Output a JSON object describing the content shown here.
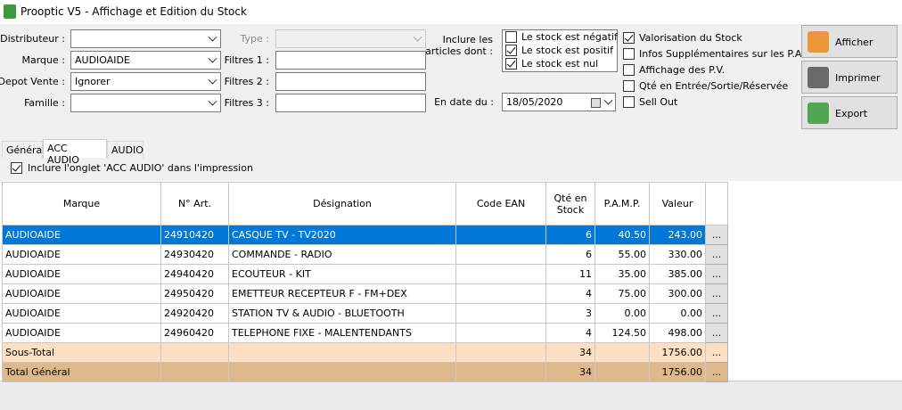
{
  "window": {
    "title": "Prooptic V5 - Affichage et Edition du Stock"
  },
  "filters": [
    {
      "label": "Distributeur :"
    },
    {
      "label": "Marque :",
      "value": "AUDIOAIDE"
    },
    {
      "label": "Depot Vente :",
      "value": "Ignorer"
    },
    {
      "label": "Famille :"
    }
  ],
  "type_filter": {
    "label": "Type :"
  },
  "text_filters": [
    "Filtres 1 :",
    "Filtres 2 :",
    "Filtres 3 :"
  ],
  "include": {
    "lines": [
      "Inclure les",
      "articles dont :"
    ],
    "options": [
      {
        "label": "Le stock est négatif",
        "checked": false
      },
      {
        "label": "Le stock est positif",
        "checked": true
      },
      {
        "label": "Le stock est nul",
        "checked": true
      }
    ]
  },
  "date": {
    "label": "En date du :",
    "value": "18/05/2020"
  },
  "options": [
    {
      "label": "Valorisation du Stock",
      "checked": true
    },
    {
      "label": "Infos Supplémentaires sur les P.A.",
      "checked": false
    },
    {
      "label": "Affichage des P.V.",
      "checked": false
    },
    {
      "label": "Qté en Entrée/Sortie/Réservée",
      "checked": false
    },
    {
      "label": "Sell Out",
      "checked": false
    }
  ],
  "buttons": [
    "Afficher",
    "Imprimer",
    "Export"
  ],
  "tabs": {
    "items": [
      "Général",
      "ACC AUDIO",
      "AUDIO"
    ],
    "active": 1
  },
  "print_option": {
    "label": "Inclure l'onglet 'ACC AUDIO' dans l'impression",
    "checked": true
  },
  "table": {
    "columns": [
      "Marque",
      "N° Art.",
      "Désignation",
      "Code EAN",
      "Qté en Stock",
      "P.A.M.P.",
      "Valeur"
    ],
    "row_button": "...",
    "selected": 0,
    "rows": [
      {
        "marque": "AUDIOAIDE",
        "art": "24910420",
        "designation": "CASQUE TV - TV2020",
        "qty": 6,
        "pamp": "40.50",
        "valeur": "243.00"
      },
      {
        "marque": "AUDIOAIDE",
        "art": "24930420",
        "designation": "COMMANDE - RADIO",
        "qty": 6,
        "pamp": "55.00",
        "valeur": "330.00"
      },
      {
        "marque": "AUDIOAIDE",
        "art": "24940420",
        "designation": "ECOUTEUR - KIT",
        "qty": 11,
        "pamp": "35.00",
        "valeur": "385.00"
      },
      {
        "marque": "AUDIOAIDE",
        "art": "24950420",
        "designation": "EMETTEUR RECEPTEUR F - FM+DEX",
        "qty": 4,
        "pamp": "75.00",
        "valeur": "300.00"
      },
      {
        "marque": "AUDIOAIDE",
        "art": "24920420",
        "designation": "STATION TV & AUDIO - BLUETOOTH",
        "qty": 3,
        "pamp": "0.00",
        "valeur": "0.00"
      },
      {
        "marque": "AUDIOAIDE",
        "art": "24960420",
        "designation": "TELEPHONE FIXE - MALENTENDANTS",
        "qty": 4,
        "pamp": "124.50",
        "valeur": "498.00"
      }
    ],
    "subtotal": {
      "label": "Sous-Total",
      "qty": 34,
      "valeur": "1756.00"
    },
    "total": {
      "label": "Total Général",
      "qty": 34,
      "valeur": "1756.00"
    }
  }
}
